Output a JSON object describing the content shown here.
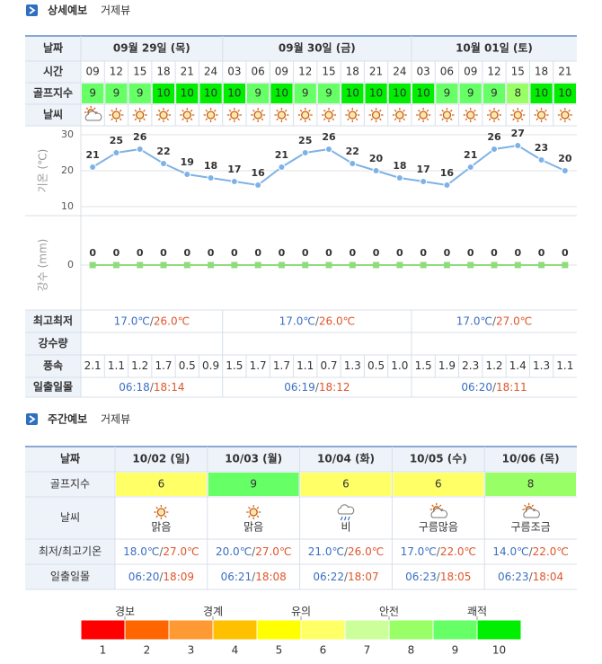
{
  "detail_header": {
    "title": "상세예보",
    "location": "거제뷰"
  },
  "detail_table": {
    "labels": {
      "date": "날짜",
      "time": "시간",
      "golf": "골프지수",
      "weather": "날씨",
      "minmax": "최고최저",
      "rain": "강수량",
      "wind": "풍속",
      "sun": "일출일몰"
    },
    "separator": "/",
    "days": [
      {
        "date": "09월 29일 (목)",
        "times": [
          "09",
          "12",
          "15",
          "18",
          "21",
          "24"
        ],
        "golf": [
          9,
          9,
          9,
          10,
          10,
          10
        ],
        "wind": [
          "2.1",
          "1.1",
          "1.2",
          "1.7",
          "0.5",
          "0.9"
        ],
        "low": "17.0℃",
        "high": "26.0℃",
        "sunrise": "06:18",
        "sunset": "18:14"
      },
      {
        "date": "09월 30일 (금)",
        "times": [
          "03",
          "06",
          "09",
          "12",
          "15",
          "18",
          "21",
          "24"
        ],
        "golf": [
          10,
          9,
          10,
          9,
          9,
          10,
          10,
          10
        ],
        "wind": [
          "1.5",
          "1.7",
          "1.7",
          "1.1",
          "0.7",
          "1.3",
          "0.5",
          "1.0"
        ],
        "low": "17.0℃",
        "high": "26.0℃",
        "sunrise": "06:19",
        "sunset": "18:12"
      },
      {
        "date": "10월 01일 (토)",
        "times": [
          "03",
          "06",
          "09",
          "12",
          "15",
          "18",
          "21"
        ],
        "golf": [
          10,
          9,
          9,
          9,
          8,
          10,
          10
        ],
        "wind": [
          "1.5",
          "1.9",
          "2.3",
          "1.2",
          "1.4",
          "1.3",
          "1.1"
        ],
        "low": "17.0℃",
        "high": "27.0℃",
        "sunrise": "06:20",
        "sunset": "18:11"
      }
    ]
  },
  "chart_data": [
    {
      "type": "line",
      "y_label": "기온 (℃)",
      "ylim": [
        10,
        30
      ],
      "yticks": [
        10,
        20,
        30
      ],
      "grid": true,
      "color": "#7eb2e6",
      "values": [
        21,
        25,
        26,
        22,
        19,
        18,
        17,
        16,
        21,
        25,
        26,
        22,
        20,
        18,
        17,
        16,
        21,
        26,
        27,
        23,
        20
      ]
    },
    {
      "type": "line",
      "y_label": "강수 (mm)",
      "ylim": [
        -1,
        1
      ],
      "yticks": [
        0
      ],
      "grid": true,
      "color": "#8fdc7c",
      "values": [
        0,
        0,
        0,
        0,
        0,
        0,
        0,
        0,
        0,
        0,
        0,
        0,
        0,
        0,
        0,
        0,
        0,
        0,
        0,
        0,
        0
      ]
    }
  ],
  "weekly_header": {
    "title": "주간예보",
    "location": "거제뷰"
  },
  "weekly_table": {
    "labels": {
      "date": "날짜",
      "golf": "골프지수",
      "weather": "날씨",
      "temp": "최저/최고기온",
      "sun": "일출일몰"
    },
    "days": [
      {
        "date": "10/02 (일)",
        "golf": 6,
        "weather": "맑음",
        "low": "18.0℃",
        "high": "27.0℃",
        "sunrise": "06:20",
        "sunset": "18:09"
      },
      {
        "date": "10/03 (월)",
        "golf": 9,
        "weather": "맑음",
        "low": "20.0℃",
        "high": "27.0℃",
        "sunrise": "06:21",
        "sunset": "18:08"
      },
      {
        "date": "10/04 (화)",
        "golf": 6,
        "weather": "비",
        "low": "21.0℃",
        "high": "26.0℃",
        "sunrise": "06:22",
        "sunset": "18:07"
      },
      {
        "date": "10/05 (수)",
        "golf": 6,
        "weather": "구름많음",
        "low": "17.0℃",
        "high": "22.0℃",
        "sunrise": "06:23",
        "sunset": "18:05"
      },
      {
        "date": "10/06 (목)",
        "golf": 8,
        "weather": "구름조금",
        "low": "14.0℃",
        "high": "22.0℃",
        "sunrise": "06:23",
        "sunset": "18:04"
      }
    ]
  },
  "legend": {
    "grades": [
      "경보",
      "경계",
      "유의",
      "안전",
      "쾌적"
    ],
    "levels": [
      {
        "value": 1,
        "color": "#ff0000"
      },
      {
        "value": 2,
        "color": "#ff6600"
      },
      {
        "value": 3,
        "color": "#ff9933"
      },
      {
        "value": 4,
        "color": "#ffc000"
      },
      {
        "value": 5,
        "color": "#ffff00"
      },
      {
        "value": 6,
        "color": "#ffff66"
      },
      {
        "value": 7,
        "color": "#ccff99"
      },
      {
        "value": 8,
        "color": "#99ff66"
      },
      {
        "value": 9,
        "color": "#66ff66"
      },
      {
        "value": 10,
        "color": "#00ee00"
      }
    ]
  }
}
